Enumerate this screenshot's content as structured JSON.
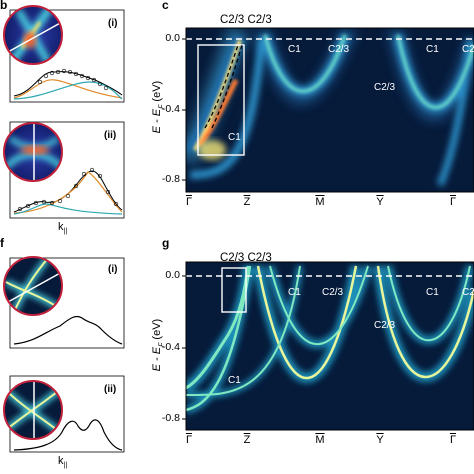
{
  "panels": {
    "b": "b",
    "c": "c",
    "f": "f",
    "g": "g"
  },
  "insets": {
    "i": "(i)",
    "ii": "(ii)",
    "kaxis": "k",
    "ksub": "||"
  },
  "axes": {
    "ylabel": "E - E",
    "ysub": "F",
    "yunit": "(eV)",
    "yticks": [
      "0.0",
      "-0.4",
      "-0.8"
    ],
    "kpoints": [
      "Γ",
      "Z",
      "M",
      "Y",
      "Γ"
    ]
  },
  "bands": {
    "c2_3_pair": "C2/3 C2/3",
    "c1": "C1",
    "c2_3": "C2/3"
  },
  "colors": {
    "background": "#061a3a",
    "band_core": "#fff6a8",
    "band_mid": "#5fd7c8",
    "band_outer": "#1d6fb0",
    "fit_orange": "#e08a2a",
    "fit_teal": "#2aa8b0",
    "circle_border": "#c0203a"
  }
}
